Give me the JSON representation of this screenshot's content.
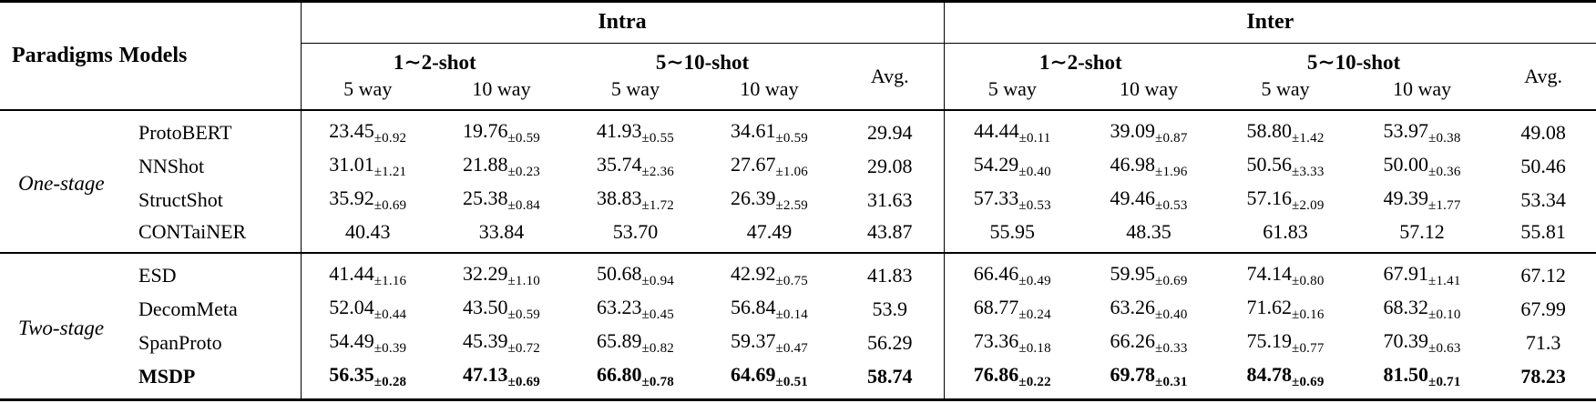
{
  "table": {
    "corner": {
      "paradigms_label": "Paradigms",
      "models_label": "Models"
    },
    "group_labels": [
      "Intra",
      "Inter"
    ],
    "shot_labels": [
      "1∼2-shot",
      "5∼10-shot"
    ],
    "way_labels": [
      "5 way",
      "10 way"
    ],
    "avg_label": "Avg.",
    "sections": [
      {
        "paradigm": "One-stage",
        "rows": [
          {
            "model": "ProtoBERT",
            "bold": false,
            "cells": [
              {
                "m": "23.45",
                "s": "±0.92"
              },
              {
                "m": "19.76",
                "s": "±0.59"
              },
              {
                "m": "41.93",
                "s": "±0.55"
              },
              {
                "m": "34.61",
                "s": "±0.59"
              },
              {
                "m": "29.94"
              },
              {
                "m": "44.44",
                "s": "±0.11"
              },
              {
                "m": "39.09",
                "s": "±0.87"
              },
              {
                "m": "58.80",
                "s": "±1.42"
              },
              {
                "m": "53.97",
                "s": "±0.38"
              },
              {
                "m": "49.08"
              }
            ]
          },
          {
            "model": "NNShot",
            "bold": false,
            "cells": [
              {
                "m": "31.01",
                "s": "±1.21"
              },
              {
                "m": "21.88",
                "s": "±0.23"
              },
              {
                "m": "35.74",
                "s": "±2.36"
              },
              {
                "m": "27.67",
                "s": "±1.06"
              },
              {
                "m": "29.08"
              },
              {
                "m": "54.29",
                "s": "±0.40"
              },
              {
                "m": "46.98",
                "s": "±1.96"
              },
              {
                "m": "50.56",
                "s": "±3.33"
              },
              {
                "m": "50.00",
                "s": "±0.36"
              },
              {
                "m": "50.46"
              }
            ]
          },
          {
            "model": "StructShot",
            "bold": false,
            "cells": [
              {
                "m": "35.92",
                "s": "±0.69"
              },
              {
                "m": "25.38",
                "s": "±0.84"
              },
              {
                "m": "38.83",
                "s": "±1.72"
              },
              {
                "m": "26.39",
                "s": "±2.59"
              },
              {
                "m": "31.63"
              },
              {
                "m": "57.33",
                "s": "±0.53"
              },
              {
                "m": "49.46",
                "s": "±0.53"
              },
              {
                "m": "57.16",
                "s": "±2.09"
              },
              {
                "m": "49.39",
                "s": "±1.77"
              },
              {
                "m": "53.34"
              }
            ]
          },
          {
            "model": "CONTaiNER",
            "bold": false,
            "cells": [
              {
                "m": "40.43"
              },
              {
                "m": "33.84"
              },
              {
                "m": "53.70"
              },
              {
                "m": "47.49"
              },
              {
                "m": "43.87"
              },
              {
                "m": "55.95"
              },
              {
                "m": "48.35"
              },
              {
                "m": "61.83"
              },
              {
                "m": "57.12"
              },
              {
                "m": "55.81"
              }
            ]
          }
        ]
      },
      {
        "paradigm": "Two-stage",
        "rows": [
          {
            "model": "ESD",
            "bold": false,
            "cells": [
              {
                "m": "41.44",
                "s": "±1.16"
              },
              {
                "m": "32.29",
                "s": "±1.10"
              },
              {
                "m": "50.68",
                "s": "±0.94"
              },
              {
                "m": "42.92",
                "s": "±0.75"
              },
              {
                "m": "41.83"
              },
              {
                "m": "66.46",
                "s": "±0.49"
              },
              {
                "m": "59.95",
                "s": "±0.69"
              },
              {
                "m": "74.14",
                "s": "±0.80"
              },
              {
                "m": "67.91",
                "s": "±1.41"
              },
              {
                "m": "67.12"
              }
            ]
          },
          {
            "model": "DecomMeta",
            "bold": false,
            "cells": [
              {
                "m": "52.04",
                "s": "±0.44"
              },
              {
                "m": "43.50",
                "s": "±0.59"
              },
              {
                "m": "63.23",
                "s": "±0.45"
              },
              {
                "m": "56.84",
                "s": "±0.14"
              },
              {
                "m": "53.9"
              },
              {
                "m": "68.77",
                "s": "±0.24"
              },
              {
                "m": "63.26",
                "s": "±0.40"
              },
              {
                "m": "71.62",
                "s": "±0.16"
              },
              {
                "m": "68.32",
                "s": "±0.10"
              },
              {
                "m": "67.99"
              }
            ]
          },
          {
            "model": "SpanProto",
            "bold": false,
            "cells": [
              {
                "m": "54.49",
                "s": "±0.39"
              },
              {
                "m": "45.39",
                "s": "±0.72"
              },
              {
                "m": "65.89",
                "s": "±0.82"
              },
              {
                "m": "59.37",
                "s": "±0.47"
              },
              {
                "m": "56.29"
              },
              {
                "m": "73.36",
                "s": "±0.18"
              },
              {
                "m": "66.26",
                "s": "±0.33"
              },
              {
                "m": "75.19",
                "s": "±0.77"
              },
              {
                "m": "70.39",
                "s": "±0.63"
              },
              {
                "m": "71.3"
              }
            ]
          },
          {
            "model": "MSDP",
            "bold": true,
            "cells": [
              {
                "m": "56.35",
                "s": "±0.28"
              },
              {
                "m": "47.13",
                "s": "±0.69"
              },
              {
                "m": "66.80",
                "s": "±0.78"
              },
              {
                "m": "64.69",
                "s": "±0.51"
              },
              {
                "m": "58.74"
              },
              {
                "m": "76.86",
                "s": "±0.22"
              },
              {
                "m": "69.78",
                "s": "±0.31"
              },
              {
                "m": "84.78",
                "s": "±0.69"
              },
              {
                "m": "81.50",
                "s": "±0.71"
              },
              {
                "m": "78.23"
              }
            ]
          }
        ]
      }
    ]
  }
}
